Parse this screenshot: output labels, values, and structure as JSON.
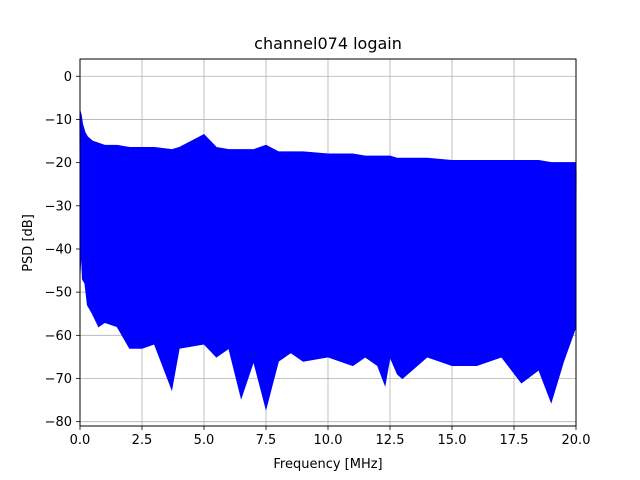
{
  "chart_data": {
    "type": "line",
    "title": "channel074 logain",
    "xlabel": "Frequency [MHz]",
    "ylabel": "PSD [dB]",
    "xlim": [
      0,
      20
    ],
    "ylim": [
      -81,
      4
    ],
    "x_ticks": [
      0,
      2.5,
      5,
      7.5,
      10,
      12.5,
      15,
      17.5,
      20
    ],
    "x_tick_labels": [
      "0.0",
      "2.5",
      "5.0",
      "7.5",
      "10.0",
      "12.5",
      "15.0",
      "17.5",
      "20.0"
    ],
    "y_ticks": [
      0,
      -10,
      -20,
      -30,
      -40,
      -50,
      -60,
      -70,
      -80
    ],
    "y_tick_labels": [
      "0",
      "−10",
      "−20",
      "−30",
      "−40",
      "−50",
      "−60",
      "−70",
      "−80"
    ],
    "grid": true,
    "series": [
      {
        "color": "#0000ff",
        "x": [
          0,
          0.05,
          0.1,
          0.2,
          0.3,
          0.4,
          0.5,
          0.75,
          1,
          1.5,
          2,
          2.5,
          3,
          3.7,
          4,
          5,
          5.5,
          6,
          6.5,
          7,
          7.5,
          8,
          8.5,
          9,
          10,
          11,
          11.5,
          12,
          12.3,
          12.5,
          12.8,
          13,
          14,
          15,
          16,
          17,
          17.8,
          18.5,
          19,
          19.5,
          20
        ],
        "upper": [
          -8,
          -9,
          -11,
          -13,
          -14,
          -14.5,
          -15,
          -15.5,
          -16,
          -16,
          -16.5,
          -16.5,
          -16.5,
          -17,
          -16.5,
          -13.5,
          -16.5,
          -17,
          -17,
          -17,
          -16,
          -17.5,
          -17.5,
          -17.5,
          -18,
          -18,
          -18.5,
          -18.5,
          -18.5,
          -18.5,
          -19,
          -19,
          -19,
          -19.5,
          -19.5,
          -19.5,
          -19.5,
          -19.5,
          -20,
          -20,
          -20
        ],
        "lower": [
          -46,
          -40,
          -47,
          -48,
          -53,
          -54,
          -55,
          -58,
          -57,
          -58,
          -63,
          -63,
          -62,
          -72.5,
          -63,
          -62,
          -65,
          -63,
          -74.5,
          -66,
          -77,
          -66,
          -64,
          -66,
          -65,
          -67,
          -65,
          -67,
          -71.5,
          -65,
          -69,
          -70,
          -65,
          -67,
          -67,
          -65,
          -71,
          -68,
          -75.5,
          -66,
          -58
        ]
      }
    ]
  }
}
